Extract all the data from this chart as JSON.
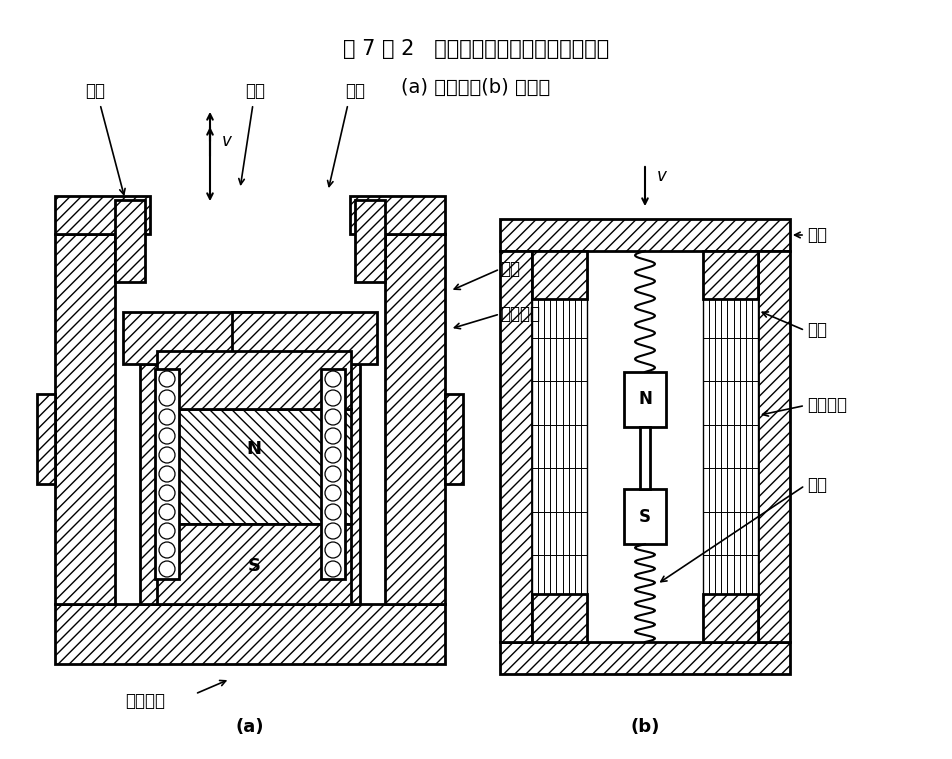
{
  "fig_width": 9.53,
  "fig_height": 7.59,
  "bg_color": "#ffffff",
  "line_color": "#000000",
  "title_line1": "图 7 － 2   恒磁通式磁电传感器结构原理图",
  "title_line2": "(a) 动圈式；(b) 动铁式",
  "label_a": "(a)",
  "label_b": "(b)"
}
